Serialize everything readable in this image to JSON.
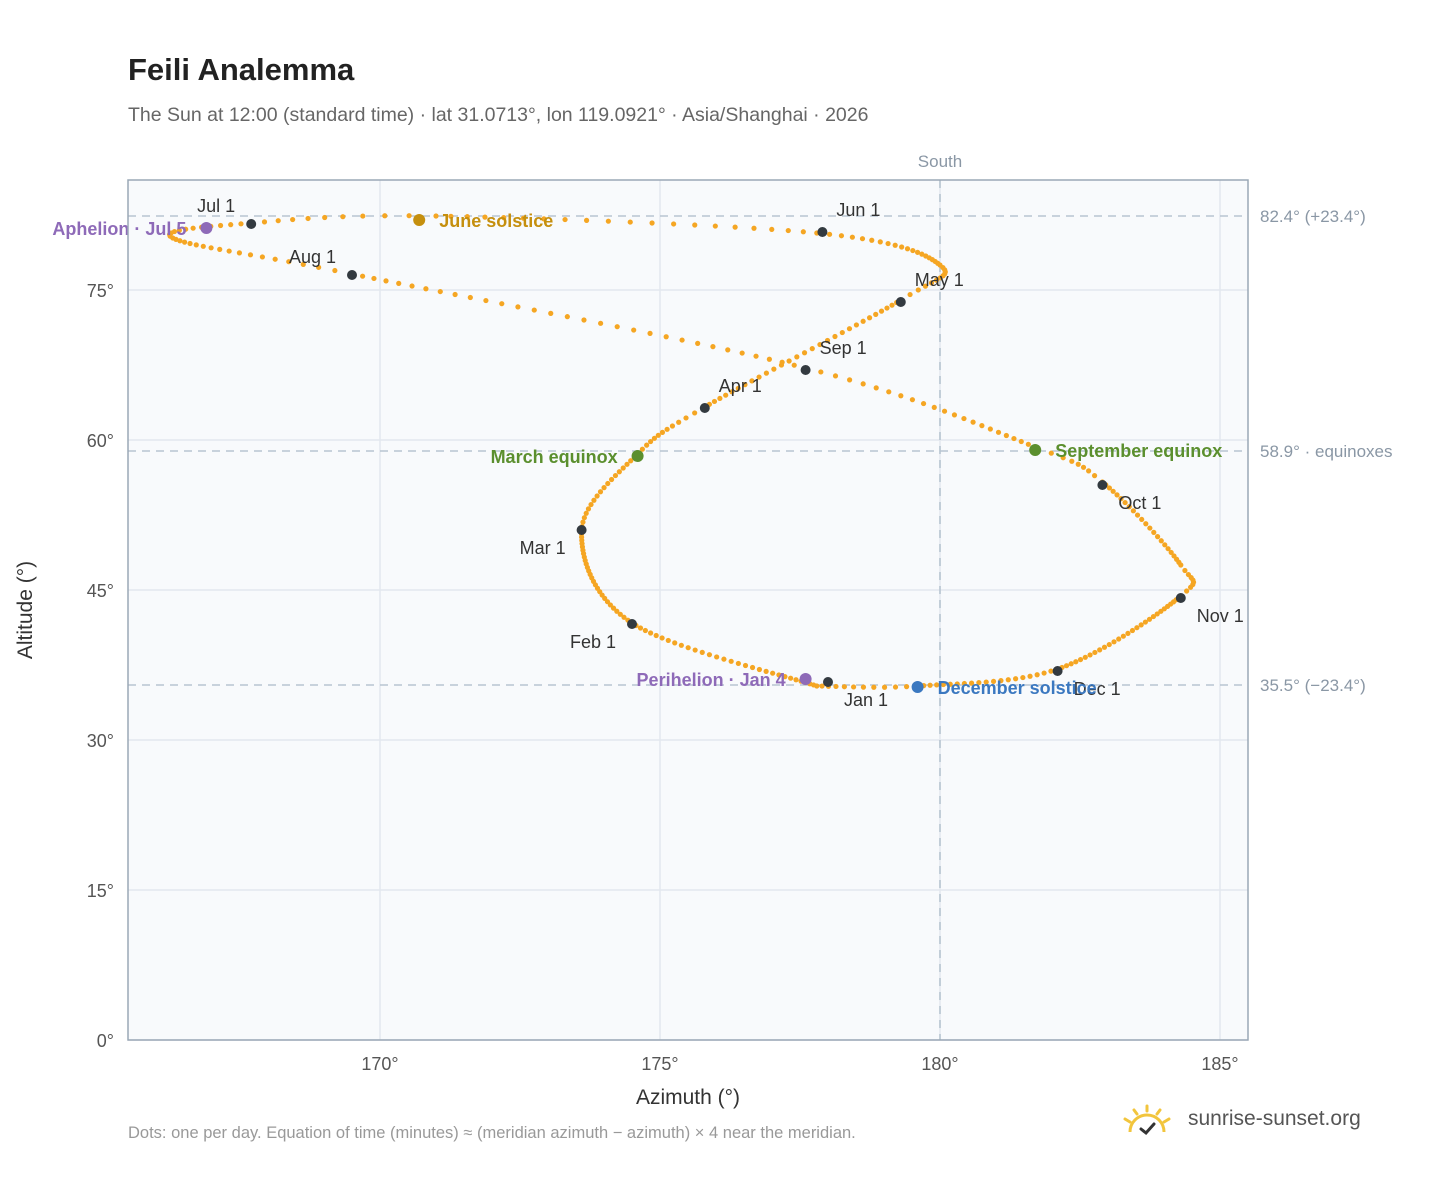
{
  "title": "Feili Analemma",
  "subtitle": "The Sun at 12:00 (standard time) · lat 31.0713°, lon 119.0921° · Asia/Shanghai · 2026",
  "footer": "Dots: one per day. Equation of time (minutes) ≈ (meridian azimuth − azimuth) × 4 near the meridian.",
  "brand": {
    "name": "sunrise-sunset.org",
    "icon": "sun-logo-icon",
    "color": "#f2c53d"
  },
  "chart_data": {
    "type": "scatter",
    "xlabel": "Azimuth (°)",
    "ylabel": "Altitude (°)",
    "xlim": [
      165.5,
      185.5
    ],
    "ylim": [
      0,
      86
    ],
    "xticks": [
      170,
      175,
      180,
      185
    ],
    "xtick_labels": [
      "170°",
      "175°",
      "180°",
      "185°"
    ],
    "yticks": [
      0,
      15,
      30,
      45,
      60,
      75
    ],
    "ytick_labels": [
      "0°",
      "15°",
      "30°",
      "45°",
      "60°",
      "75°"
    ],
    "grid": true,
    "colors": {
      "path": "#f5a623",
      "month": "#333a40",
      "equinox": "#5b8f2e",
      "june": "#c58f0e",
      "december": "#3b78c0",
      "apsis": "#8e6ab8",
      "reference": "#b8c5d1",
      "plot_bg": "#f8fafc"
    },
    "reference_lines": {
      "meridian": {
        "azimuth": 180,
        "label": "South"
      },
      "altitudes": [
        {
          "value": 82.4,
          "label": "82.4° (+23.4°)"
        },
        {
          "value": 58.9,
          "label": "58.9° · equinoxes"
        },
        {
          "value": 35.5,
          "label": "35.5° (−23.4°)"
        }
      ]
    },
    "analemma_anchors": [
      {
        "doy": 1,
        "az": 177.8,
        "alt": 35.4
      },
      {
        "doy": 32,
        "az": 174.5,
        "alt": 41.7
      },
      {
        "doy": 60,
        "az": 173.6,
        "alt": 50.9
      },
      {
        "doy": 79,
        "az": 174.6,
        "alt": 58.6
      },
      {
        "doy": 91,
        "az": 175.8,
        "alt": 63.3
      },
      {
        "doy": 121,
        "az": 179.3,
        "alt": 74.0
      },
      {
        "doy": 133,
        "az": 180.0,
        "alt": 77.5
      },
      {
        "doy": 152,
        "az": 177.8,
        "alt": 80.7
      },
      {
        "doy": 172,
        "az": 171.0,
        "alt": 82.4
      },
      {
        "doy": 182,
        "az": 167.7,
        "alt": 81.7
      },
      {
        "doy": 195,
        "az": 166.3,
        "alt": 80.2
      },
      {
        "doy": 213,
        "az": 169.5,
        "alt": 76.6
      },
      {
        "doy": 244,
        "az": 177.6,
        "alt": 67.2
      },
      {
        "doy": 266,
        "az": 181.7,
        "alt": 59.3
      },
      {
        "doy": 274,
        "az": 182.9,
        "alt": 55.8
      },
      {
        "doy": 296,
        "az": 184.3,
        "alt": 47.5
      },
      {
        "doy": 305,
        "az": 184.3,
        "alt": 44.4
      },
      {
        "doy": 335,
        "az": 182.1,
        "alt": 37.1
      },
      {
        "doy": 355,
        "az": 179.6,
        "alt": 35.4
      },
      {
        "doy": 366,
        "az": 177.8,
        "alt": 35.4
      }
    ],
    "month_markers": [
      {
        "label": "Jan 1",
        "az": 178.0,
        "alt": 35.8,
        "anchor": "below-right"
      },
      {
        "label": "Feb 1",
        "az": 174.5,
        "alt": 41.6,
        "anchor": "below-left"
      },
      {
        "label": "Mar 1",
        "az": 173.6,
        "alt": 51.0,
        "anchor": "below-left"
      },
      {
        "label": "Apr 1",
        "az": 175.8,
        "alt": 63.2,
        "anchor": "above-right"
      },
      {
        "label": "May 1",
        "az": 179.3,
        "alt": 73.8,
        "anchor": "above-right"
      },
      {
        "label": "Jun 1",
        "az": 177.9,
        "alt": 80.8,
        "anchor": "above-right"
      },
      {
        "label": "Jul 1",
        "az": 167.7,
        "alt": 81.6,
        "anchor": "above-left"
      },
      {
        "label": "Aug 1",
        "az": 169.5,
        "alt": 76.5,
        "anchor": "above-left"
      },
      {
        "label": "Sep 1",
        "az": 177.6,
        "alt": 67.0,
        "anchor": "above-right"
      },
      {
        "label": "Oct 1",
        "az": 182.9,
        "alt": 55.5,
        "anchor": "below-right"
      },
      {
        "label": "Nov 1",
        "az": 184.3,
        "alt": 44.2,
        "anchor": "below-right"
      },
      {
        "label": "Dec 1",
        "az": 182.1,
        "alt": 36.9,
        "anchor": "below-right"
      }
    ],
    "events": [
      {
        "label": "June solstice",
        "az": 170.7,
        "alt": 82.0,
        "color": "june",
        "anchor": "right"
      },
      {
        "label": "March equinox",
        "az": 174.6,
        "alt": 58.4,
        "color": "equinox",
        "anchor": "left"
      },
      {
        "label": "September equinox",
        "az": 181.7,
        "alt": 59.0,
        "color": "equinox",
        "anchor": "right"
      },
      {
        "label": "December solstice",
        "az": 179.6,
        "alt": 35.3,
        "color": "december",
        "anchor": "right"
      },
      {
        "label": "Aphelion · Jul 5",
        "az": 166.9,
        "alt": 81.2,
        "color": "apsis",
        "anchor": "left"
      },
      {
        "label": "Perihelion · Jan 4",
        "az": 177.6,
        "alt": 36.1,
        "color": "apsis",
        "anchor": "left"
      }
    ]
  }
}
